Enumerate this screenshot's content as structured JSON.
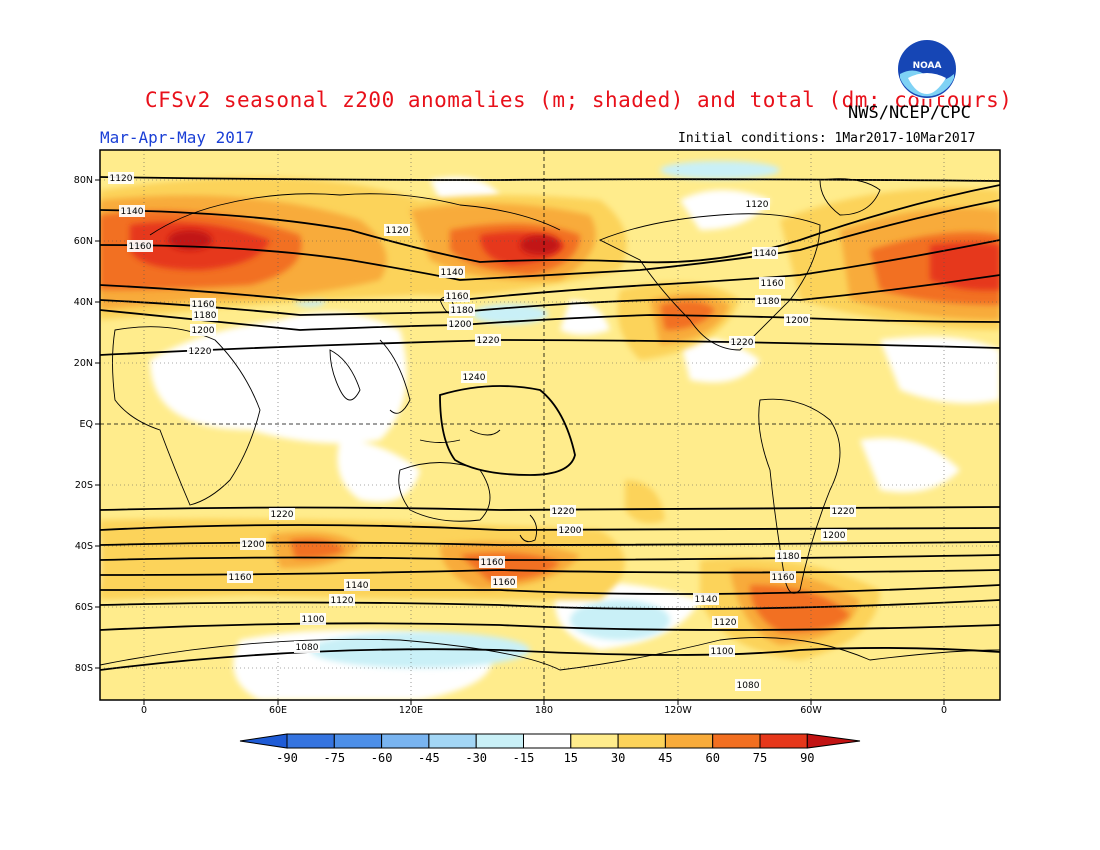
{
  "header": {
    "title": "CFSv2 seasonal z200 anomalies (m; shaded) and total (dm; contours)",
    "org": "NWS/NCEP/CPC",
    "period": "Mar-Apr-May 2017",
    "init_conditions": "Initial conditions: 1Mar2017-10Mar2017",
    "logo_text": "NOAA"
  },
  "map": {
    "lat_labels": [
      "80N",
      "60N",
      "40N",
      "20N",
      "EQ",
      "20S",
      "40S",
      "60S",
      "80S"
    ],
    "lon_labels": [
      "0",
      "60E",
      "120E",
      "180",
      "120W",
      "60W",
      "0"
    ]
  },
  "contours": [
    {
      "value": "1240"
    },
    {
      "value": "1220"
    },
    {
      "value": "1200"
    },
    {
      "value": "1180"
    },
    {
      "value": "1160"
    },
    {
      "value": "1140"
    },
    {
      "value": "1120"
    },
    {
      "value": "1100"
    },
    {
      "value": "1080"
    }
  ],
  "colorbar": {
    "labels": [
      "-90",
      "-75",
      "-60",
      "-45",
      "-30",
      "-15",
      "15",
      "30",
      "45",
      "60",
      "75",
      "90"
    ],
    "colors": {
      "n90": "#1e5bd6",
      "n75": "#3574e0",
      "n60": "#4d8fe8",
      "n45": "#79b4f0",
      "n30": "#a3d6f5",
      "n15": "#c9f0f7",
      "zero": "#ffffff",
      "p15": "#ffec8c",
      "p30": "#fcd35a",
      "p45": "#f8ab3a",
      "p60": "#f26f20",
      "p75": "#e6371a",
      "p90": "#c21313"
    }
  }
}
